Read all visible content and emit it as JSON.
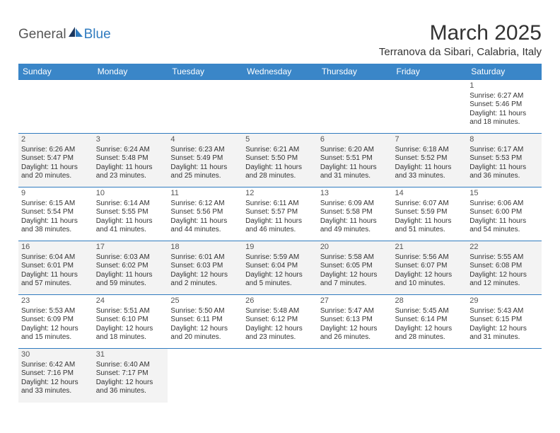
{
  "brand": {
    "part1": "General",
    "part2": "Blue"
  },
  "title": "March 2025",
  "location": "Terranova da Sibari, Calabria, Italy",
  "colors": {
    "header_bg": "#3a86c8",
    "header_text": "#ffffff",
    "border": "#2f7bbf",
    "shaded_bg": "#f3f3f3",
    "text": "#333333"
  },
  "columns": [
    "Sunday",
    "Monday",
    "Tuesday",
    "Wednesday",
    "Thursday",
    "Friday",
    "Saturday"
  ],
  "weeks": [
    [
      {
        "empty": true
      },
      {
        "empty": true
      },
      {
        "empty": true
      },
      {
        "empty": true
      },
      {
        "empty": true
      },
      {
        "empty": true
      },
      {
        "day": "1",
        "sunrise": "Sunrise: 6:27 AM",
        "sunset": "Sunset: 5:46 PM",
        "daylight": "Daylight: 11 hours and 18 minutes."
      }
    ],
    [
      {
        "day": "2",
        "shaded": true,
        "sunrise": "Sunrise: 6:26 AM",
        "sunset": "Sunset: 5:47 PM",
        "daylight": "Daylight: 11 hours and 20 minutes."
      },
      {
        "day": "3",
        "shaded": true,
        "sunrise": "Sunrise: 6:24 AM",
        "sunset": "Sunset: 5:48 PM",
        "daylight": "Daylight: 11 hours and 23 minutes."
      },
      {
        "day": "4",
        "shaded": true,
        "sunrise": "Sunrise: 6:23 AM",
        "sunset": "Sunset: 5:49 PM",
        "daylight": "Daylight: 11 hours and 25 minutes."
      },
      {
        "day": "5",
        "shaded": true,
        "sunrise": "Sunrise: 6:21 AM",
        "sunset": "Sunset: 5:50 PM",
        "daylight": "Daylight: 11 hours and 28 minutes."
      },
      {
        "day": "6",
        "shaded": true,
        "sunrise": "Sunrise: 6:20 AM",
        "sunset": "Sunset: 5:51 PM",
        "daylight": "Daylight: 11 hours and 31 minutes."
      },
      {
        "day": "7",
        "shaded": true,
        "sunrise": "Sunrise: 6:18 AM",
        "sunset": "Sunset: 5:52 PM",
        "daylight": "Daylight: 11 hours and 33 minutes."
      },
      {
        "day": "8",
        "shaded": true,
        "sunrise": "Sunrise: 6:17 AM",
        "sunset": "Sunset: 5:53 PM",
        "daylight": "Daylight: 11 hours and 36 minutes."
      }
    ],
    [
      {
        "day": "9",
        "sunrise": "Sunrise: 6:15 AM",
        "sunset": "Sunset: 5:54 PM",
        "daylight": "Daylight: 11 hours and 38 minutes."
      },
      {
        "day": "10",
        "sunrise": "Sunrise: 6:14 AM",
        "sunset": "Sunset: 5:55 PM",
        "daylight": "Daylight: 11 hours and 41 minutes."
      },
      {
        "day": "11",
        "sunrise": "Sunrise: 6:12 AM",
        "sunset": "Sunset: 5:56 PM",
        "daylight": "Daylight: 11 hours and 44 minutes."
      },
      {
        "day": "12",
        "sunrise": "Sunrise: 6:11 AM",
        "sunset": "Sunset: 5:57 PM",
        "daylight": "Daylight: 11 hours and 46 minutes."
      },
      {
        "day": "13",
        "sunrise": "Sunrise: 6:09 AM",
        "sunset": "Sunset: 5:58 PM",
        "daylight": "Daylight: 11 hours and 49 minutes."
      },
      {
        "day": "14",
        "sunrise": "Sunrise: 6:07 AM",
        "sunset": "Sunset: 5:59 PM",
        "daylight": "Daylight: 11 hours and 51 minutes."
      },
      {
        "day": "15",
        "sunrise": "Sunrise: 6:06 AM",
        "sunset": "Sunset: 6:00 PM",
        "daylight": "Daylight: 11 hours and 54 minutes."
      }
    ],
    [
      {
        "day": "16",
        "shaded": true,
        "sunrise": "Sunrise: 6:04 AM",
        "sunset": "Sunset: 6:01 PM",
        "daylight": "Daylight: 11 hours and 57 minutes."
      },
      {
        "day": "17",
        "shaded": true,
        "sunrise": "Sunrise: 6:03 AM",
        "sunset": "Sunset: 6:02 PM",
        "daylight": "Daylight: 11 hours and 59 minutes."
      },
      {
        "day": "18",
        "shaded": true,
        "sunrise": "Sunrise: 6:01 AM",
        "sunset": "Sunset: 6:03 PM",
        "daylight": "Daylight: 12 hours and 2 minutes."
      },
      {
        "day": "19",
        "shaded": true,
        "sunrise": "Sunrise: 5:59 AM",
        "sunset": "Sunset: 6:04 PM",
        "daylight": "Daylight: 12 hours and 5 minutes."
      },
      {
        "day": "20",
        "shaded": true,
        "sunrise": "Sunrise: 5:58 AM",
        "sunset": "Sunset: 6:05 PM",
        "daylight": "Daylight: 12 hours and 7 minutes."
      },
      {
        "day": "21",
        "shaded": true,
        "sunrise": "Sunrise: 5:56 AM",
        "sunset": "Sunset: 6:07 PM",
        "daylight": "Daylight: 12 hours and 10 minutes."
      },
      {
        "day": "22",
        "shaded": true,
        "sunrise": "Sunrise: 5:55 AM",
        "sunset": "Sunset: 6:08 PM",
        "daylight": "Daylight: 12 hours and 12 minutes."
      }
    ],
    [
      {
        "day": "23",
        "sunrise": "Sunrise: 5:53 AM",
        "sunset": "Sunset: 6:09 PM",
        "daylight": "Daylight: 12 hours and 15 minutes."
      },
      {
        "day": "24",
        "sunrise": "Sunrise: 5:51 AM",
        "sunset": "Sunset: 6:10 PM",
        "daylight": "Daylight: 12 hours and 18 minutes."
      },
      {
        "day": "25",
        "sunrise": "Sunrise: 5:50 AM",
        "sunset": "Sunset: 6:11 PM",
        "daylight": "Daylight: 12 hours and 20 minutes."
      },
      {
        "day": "26",
        "sunrise": "Sunrise: 5:48 AM",
        "sunset": "Sunset: 6:12 PM",
        "daylight": "Daylight: 12 hours and 23 minutes."
      },
      {
        "day": "27",
        "sunrise": "Sunrise: 5:47 AM",
        "sunset": "Sunset: 6:13 PM",
        "daylight": "Daylight: 12 hours and 26 minutes."
      },
      {
        "day": "28",
        "sunrise": "Sunrise: 5:45 AM",
        "sunset": "Sunset: 6:14 PM",
        "daylight": "Daylight: 12 hours and 28 minutes."
      },
      {
        "day": "29",
        "sunrise": "Sunrise: 5:43 AM",
        "sunset": "Sunset: 6:15 PM",
        "daylight": "Daylight: 12 hours and 31 minutes."
      }
    ],
    [
      {
        "day": "30",
        "shaded": true,
        "sunrise": "Sunrise: 6:42 AM",
        "sunset": "Sunset: 7:16 PM",
        "daylight": "Daylight: 12 hours and 33 minutes."
      },
      {
        "day": "31",
        "shaded": true,
        "sunrise": "Sunrise: 6:40 AM",
        "sunset": "Sunset: 7:17 PM",
        "daylight": "Daylight: 12 hours and 36 minutes."
      },
      {
        "empty": true
      },
      {
        "empty": true
      },
      {
        "empty": true
      },
      {
        "empty": true
      },
      {
        "empty": true
      }
    ]
  ]
}
